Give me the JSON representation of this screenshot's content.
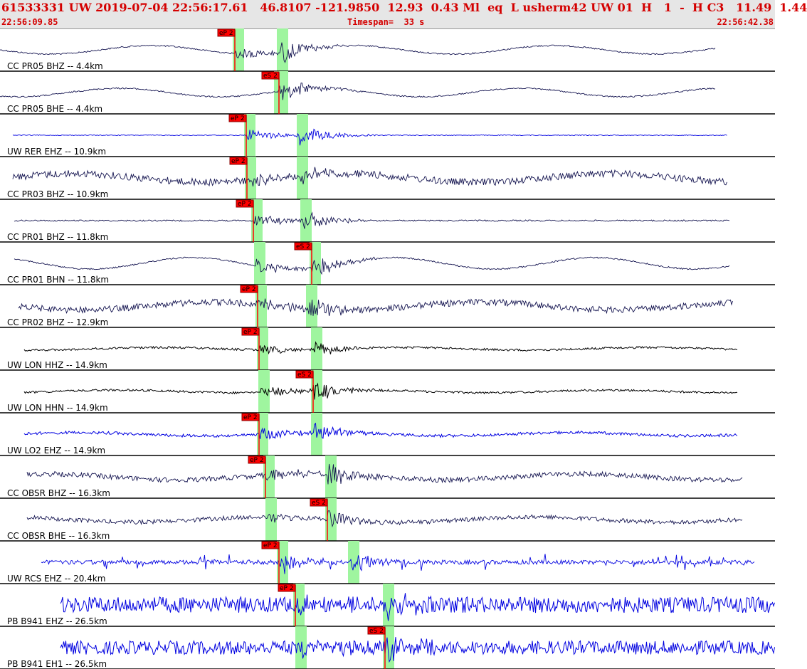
{
  "header": {
    "title": "61533331 UW 2019-07-04 22:56:17.61   46.8107 -121.9850  12.93  0.43 Ml  eq  L usherm42 UW 01  H   1  -  H C3   11.49  1.44",
    "start_time": "22:56:09.85",
    "timespan": "Timespan=  33 s",
    "end_time": "22:56:42.38"
  },
  "colors": {
    "pick_red": "#ff0000",
    "window_green": "#9ff59f",
    "trace_blue": "#0000e0",
    "trace_navy": "#141450",
    "trace_black": "#000000"
  },
  "traces": [
    {
      "label": "CC PR05 BHZ -- 4.4km",
      "color": "#141450",
      "kind": "lowfreq",
      "amp": 6,
      "event_amp": 28,
      "window_x": 0.316,
      "pick": "eP 2",
      "pick_type": "P"
    },
    {
      "label": "CC PR05 BHE -- 4.4km",
      "color": "#141450",
      "kind": "lowfreq",
      "amp": 6,
      "event_amp": 22,
      "window_x": 0.36,
      "pick": "eS 2",
      "pick_type": "S"
    },
    {
      "label": "UW RER EHZ -- 10.9km",
      "color": "#0000e0",
      "kind": "quiet",
      "amp": 1,
      "event_amp": 26,
      "window_x": 0.32,
      "pick": "eP 2",
      "pick_type": "P"
    },
    {
      "label": "CC PR03 BHZ -- 10.9km",
      "color": "#141450",
      "kind": "noisy",
      "amp": 10,
      "event_amp": 22,
      "window_x": 0.315,
      "pick": "eP 2",
      "pick_type": "P"
    },
    {
      "label": "CC PR01 BHZ -- 11.8km",
      "color": "#141450",
      "kind": "quiet",
      "amp": 2,
      "event_amp": 26,
      "window_x": 0.33,
      "pick": "eP 2",
      "pick_type": "P"
    },
    {
      "label": "CC PR01 BHN -- 11.8km",
      "color": "#141450",
      "kind": "lowfreq",
      "amp": 8,
      "event_amp": 28,
      "window_x": 0.395,
      "pick": "eS 2",
      "pick_type": "S"
    },
    {
      "label": "CC PR02 BHZ -- 12.9km",
      "color": "#141450",
      "kind": "noisy",
      "amp": 9,
      "event_amp": 22,
      "window_x": 0.33,
      "pick": "eP 2",
      "pick_type": "P"
    },
    {
      "label": "UW LON HHZ -- 14.9km",
      "color": "#000000",
      "kind": "band",
      "amp": 3,
      "event_amp": 18,
      "window_x": 0.33,
      "pick": "eP 2",
      "pick_type": "P"
    },
    {
      "label": "UW LON HHN -- 14.9km",
      "color": "#000000",
      "kind": "band",
      "amp": 3,
      "event_amp": 24,
      "window_x": 0.395,
      "pick": "eS 2",
      "pick_type": "S"
    },
    {
      "label": "UW LO2 EHZ -- 14.9km",
      "color": "#0000e0",
      "kind": "band",
      "amp": 4,
      "event_amp": 24,
      "window_x": 0.33,
      "pick": "eP 2",
      "pick_type": "P"
    },
    {
      "label": "CC OBSR BHZ -- 16.3km",
      "color": "#141450",
      "kind": "noisy",
      "amp": 7,
      "event_amp": 26,
      "window_x": 0.34,
      "pick": "eP 2",
      "pick_type": "P"
    },
    {
      "label": "CC OBSR BHE -- 16.3km",
      "color": "#141450",
      "kind": "noisy",
      "amp": 6,
      "event_amp": 22,
      "window_x": 0.41,
      "pick": "eS 2",
      "pick_type": "S"
    },
    {
      "label": "UW RCS EHZ -- 20.4km",
      "color": "#0000e0",
      "kind": "spiky",
      "amp": 6,
      "event_amp": 26,
      "window_x": 0.34,
      "pick": "eP 2",
      "pick_type": "P"
    },
    {
      "label": "PB B941 EHZ -- 26.5km",
      "color": "#0000e0",
      "kind": "dense",
      "amp": 14,
      "event_amp": 26,
      "window_x": 0.365,
      "pick": "eP 2",
      "pick_type": "P"
    },
    {
      "label": "PB B941 EH1 -- 26.5km",
      "color": "#0000e0",
      "kind": "dense",
      "amp": 12,
      "event_amp": 26,
      "window_x": 0.47,
      "pick": "eS 2",
      "pick_type": "S"
    }
  ]
}
